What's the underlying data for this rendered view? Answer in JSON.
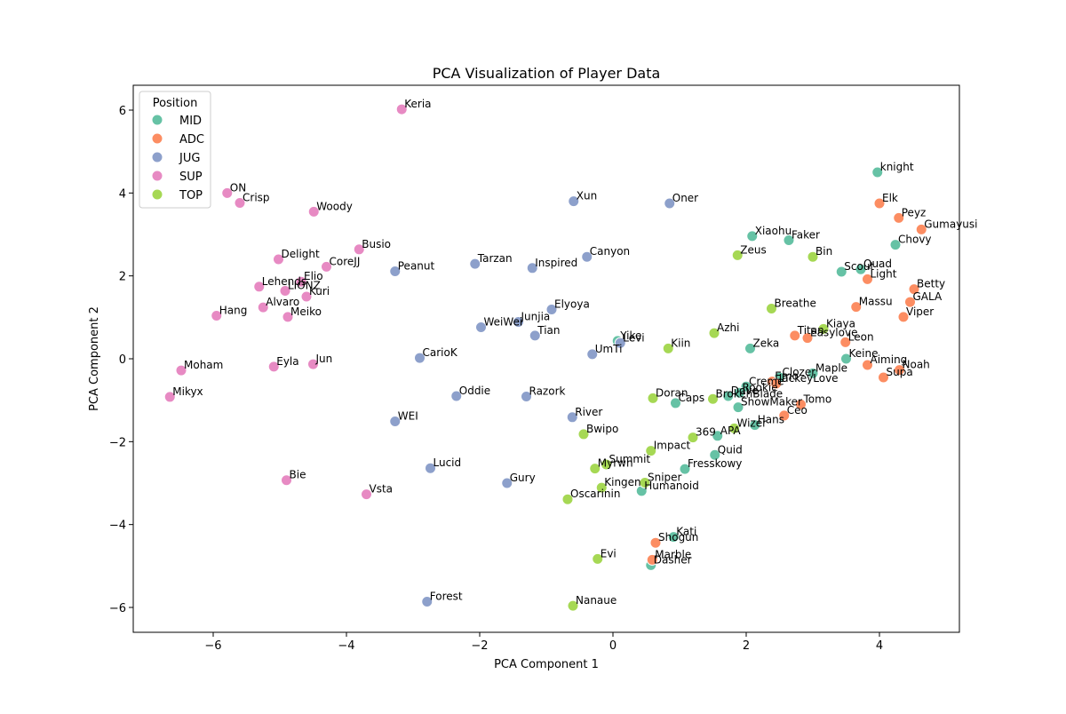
{
  "chart_data": {
    "type": "scatter",
    "title": "PCA Visualization of Player Data",
    "xlabel": "PCA Component 1",
    "ylabel": "PCA Component 2",
    "xlim": [
      -7.2,
      5.2
    ],
    "ylim": [
      -6.6,
      6.6
    ],
    "xticks": [
      -6,
      -4,
      -2,
      0,
      2,
      4
    ],
    "yticks": [
      -6,
      -4,
      -2,
      0,
      2,
      4,
      6
    ],
    "xtick_labels": [
      "−6",
      "−4",
      "−2",
      "0",
      "2",
      "4"
    ],
    "ytick_labels": [
      "−6",
      "−4",
      "−2",
      "0",
      "2",
      "4",
      "6"
    ],
    "grid": false,
    "legend": {
      "title": "Position",
      "placement": "top-left",
      "entries": [
        {
          "name": "MID",
          "color": "#66c2a5"
        },
        {
          "name": "ADC",
          "color": "#fc8d62"
        },
        {
          "name": "JUG",
          "color": "#8da0cb"
        },
        {
          "name": "SUP",
          "color": "#e78ac3"
        },
        {
          "name": "TOP",
          "color": "#a6d854"
        }
      ]
    },
    "series": [
      {
        "name": "MID",
        "color": "#66c2a5",
        "points": [
          {
            "label": "knight",
            "x": 3.97,
            "y": 4.5
          },
          {
            "label": "Xiaohu",
            "x": 2.09,
            "y": 2.96
          },
          {
            "label": "Faker",
            "x": 2.64,
            "y": 2.86
          },
          {
            "label": "Chovy",
            "x": 4.24,
            "y": 2.75
          },
          {
            "label": "Scout",
            "x": 3.43,
            "y": 2.1
          },
          {
            "label": "Quad",
            "x": 3.72,
            "y": 2.16
          },
          {
            "label": "Zeka",
            "x": 2.06,
            "y": 0.25
          },
          {
            "label": "Keine",
            "x": 3.5,
            "y": 0.0
          },
          {
            "label": "Maple",
            "x": 3.0,
            "y": -0.35
          },
          {
            "label": "Creme",
            "x": 2.0,
            "y": -0.67
          },
          {
            "label": "Dove",
            "x": 1.73,
            "y": -0.9
          },
          {
            "label": "Rookie",
            "x": 1.9,
            "y": -0.82
          },
          {
            "label": "ShowMaker",
            "x": 1.88,
            "y": -1.17
          },
          {
            "label": "Caps",
            "x": 0.94,
            "y": -1.07
          },
          {
            "label": "Clozer",
            "x": 2.5,
            "y": -0.45
          },
          {
            "label": "Hans",
            "x": 2.13,
            "y": -1.6
          },
          {
            "label": "APA",
            "x": 1.57,
            "y": -1.86
          },
          {
            "label": "Quid",
            "x": 1.53,
            "y": -2.32
          },
          {
            "label": "Fresskowy",
            "x": 1.08,
            "y": -2.66
          },
          {
            "label": "Humanoid",
            "x": 0.43,
            "y": -3.19
          },
          {
            "label": "Kati",
            "x": 0.91,
            "y": -4.3
          },
          {
            "label": "Dasher",
            "x": 0.57,
            "y": -4.98
          },
          {
            "label": "Yike",
            "x": 0.07,
            "y": 0.43
          }
        ]
      },
      {
        "name": "ADC",
        "color": "#fc8d62",
        "points": [
          {
            "label": "Elk",
            "x": 4.0,
            "y": 3.75
          },
          {
            "label": "Peyz",
            "x": 4.29,
            "y": 3.4
          },
          {
            "label": "Gumayusi",
            "x": 4.63,
            "y": 3.12
          },
          {
            "label": "Light",
            "x": 3.82,
            "y": 1.92
          },
          {
            "label": "Betty",
            "x": 4.52,
            "y": 1.68
          },
          {
            "label": "GALA",
            "x": 4.46,
            "y": 1.37
          },
          {
            "label": "Massu",
            "x": 3.65,
            "y": 1.25
          },
          {
            "label": "Viper",
            "x": 4.36,
            "y": 1.01
          },
          {
            "label": "Titan",
            "x": 2.73,
            "y": 0.56
          },
          {
            "label": "Easylove",
            "x": 2.92,
            "y": 0.5
          },
          {
            "label": "Leon",
            "x": 3.49,
            "y": 0.4
          },
          {
            "label": "Aiming",
            "x": 3.82,
            "y": -0.15
          },
          {
            "label": "Noah",
            "x": 4.3,
            "y": -0.27
          },
          {
            "label": "Supa",
            "x": 4.06,
            "y": -0.45
          },
          {
            "label": "Emo",
            "x": 2.39,
            "y": -0.55
          },
          {
            "label": "JackeyLove",
            "x": 2.45,
            "y": -0.6
          },
          {
            "label": "Tomo",
            "x": 2.82,
            "y": -1.1
          },
          {
            "label": "Ceo",
            "x": 2.57,
            "y": -1.37
          },
          {
            "label": "Shogun",
            "x": 0.64,
            "y": -4.44
          },
          {
            "label": "Marble",
            "x": 0.59,
            "y": -4.85
          }
        ]
      },
      {
        "name": "JUG",
        "color": "#8da0cb",
        "points": [
          {
            "label": "Xun",
            "x": -0.59,
            "y": 3.8
          },
          {
            "label": "Oner",
            "x": 0.85,
            "y": 3.75
          },
          {
            "label": "Tarzan",
            "x": -2.07,
            "y": 2.29
          },
          {
            "label": "Inspired",
            "x": -1.21,
            "y": 2.19
          },
          {
            "label": "Canyon",
            "x": -0.39,
            "y": 2.46
          },
          {
            "label": "Peanut",
            "x": -3.27,
            "y": 2.11
          },
          {
            "label": "Elyoya",
            "x": -0.92,
            "y": 1.19
          },
          {
            "label": "Junjia",
            "x": -1.42,
            "y": 0.89
          },
          {
            "label": "WeiWei",
            "x": -1.98,
            "y": 0.76
          },
          {
            "label": "Tian",
            "x": -1.17,
            "y": 0.56
          },
          {
            "label": "Levi",
            "x": 0.11,
            "y": 0.38
          },
          {
            "label": "UmTi",
            "x": -0.31,
            "y": 0.11
          },
          {
            "label": "CarioK",
            "x": -2.9,
            "y": 0.02
          },
          {
            "label": "Oddie",
            "x": -2.35,
            "y": -0.9
          },
          {
            "label": "Razork",
            "x": -1.3,
            "y": -0.91
          },
          {
            "label": "River",
            "x": -0.61,
            "y": -1.41
          },
          {
            "label": "WEI",
            "x": -3.27,
            "y": -1.51
          },
          {
            "label": "Lucid",
            "x": -2.74,
            "y": -2.64
          },
          {
            "label": "Gury",
            "x": -1.59,
            "y": -3.0
          },
          {
            "label": "Forest",
            "x": -2.79,
            "y": -5.86
          }
        ]
      },
      {
        "name": "SUP",
        "color": "#e78ac3",
        "points": [
          {
            "label": "Keria",
            "x": -3.17,
            "y": 6.02
          },
          {
            "label": "ON",
            "x": -5.79,
            "y": 4.0
          },
          {
            "label": "Crisp",
            "x": -5.6,
            "y": 3.76
          },
          {
            "label": "Woody",
            "x": -4.49,
            "y": 3.55
          },
          {
            "label": "Busio",
            "x": -3.81,
            "y": 2.64
          },
          {
            "label": "Delight",
            "x": -5.02,
            "y": 2.4
          },
          {
            "label": "CoreJJ",
            "x": -4.3,
            "y": 2.22
          },
          {
            "label": "Lehends",
            "x": -5.31,
            "y": 1.74
          },
          {
            "label": "Elio",
            "x": -4.68,
            "y": 1.86
          },
          {
            "label": "LIONZ",
            "x": -4.92,
            "y": 1.64
          },
          {
            "label": "Kuri",
            "x": -4.6,
            "y": 1.5
          },
          {
            "label": "Alvaro",
            "x": -5.25,
            "y": 1.24
          },
          {
            "label": "Hang",
            "x": -5.95,
            "y": 1.04
          },
          {
            "label": "Meiko",
            "x": -4.88,
            "y": 1.01
          },
          {
            "label": "Moham",
            "x": -6.48,
            "y": -0.28
          },
          {
            "label": "Eyla",
            "x": -5.09,
            "y": -0.19
          },
          {
            "label": "Jun",
            "x": -4.5,
            "y": -0.13
          },
          {
            "label": "Mikyx",
            "x": -6.65,
            "y": -0.92
          },
          {
            "label": "Bie",
            "x": -4.9,
            "y": -2.93
          },
          {
            "label": "Vsta",
            "x": -3.7,
            "y": -3.27
          }
        ]
      },
      {
        "name": "TOP",
        "color": "#a6d854",
        "points": [
          {
            "label": "Zeus",
            "x": 1.87,
            "y": 2.5
          },
          {
            "label": "Bin",
            "x": 3.0,
            "y": 2.46
          },
          {
            "label": "Breathe",
            "x": 2.38,
            "y": 1.21
          },
          {
            "label": "Kiaya",
            "x": 3.16,
            "y": 0.72
          },
          {
            "label": "Azhi",
            "x": 1.52,
            "y": 0.62
          },
          {
            "label": "Kiin",
            "x": 0.83,
            "y": 0.25
          },
          {
            "label": "Doran",
            "x": 0.6,
            "y": -0.95
          },
          {
            "label": "BrokenBlade",
            "x": 1.5,
            "y": -0.97
          },
          {
            "label": "Wizer",
            "x": 1.82,
            "y": -1.68
          },
          {
            "label": "Bwipo",
            "x": -0.44,
            "y": -1.82
          },
          {
            "label": "369",
            "x": 1.2,
            "y": -1.9
          },
          {
            "label": "Impact",
            "x": 0.57,
            "y": -2.22
          },
          {
            "label": "Myrwn",
            "x": -0.27,
            "y": -2.65
          },
          {
            "label": "Summit",
            "x": -0.1,
            "y": -2.55
          },
          {
            "label": "Sniper",
            "x": 0.48,
            "y": -2.99
          },
          {
            "label": "Kingen",
            "x": -0.17,
            "y": -3.11
          },
          {
            "label": "Oscarinin",
            "x": -0.68,
            "y": -3.39
          },
          {
            "label": "Evi",
            "x": -0.23,
            "y": -4.83
          },
          {
            "label": "Nanaue",
            "x": -0.6,
            "y": -5.96
          }
        ]
      }
    ]
  }
}
